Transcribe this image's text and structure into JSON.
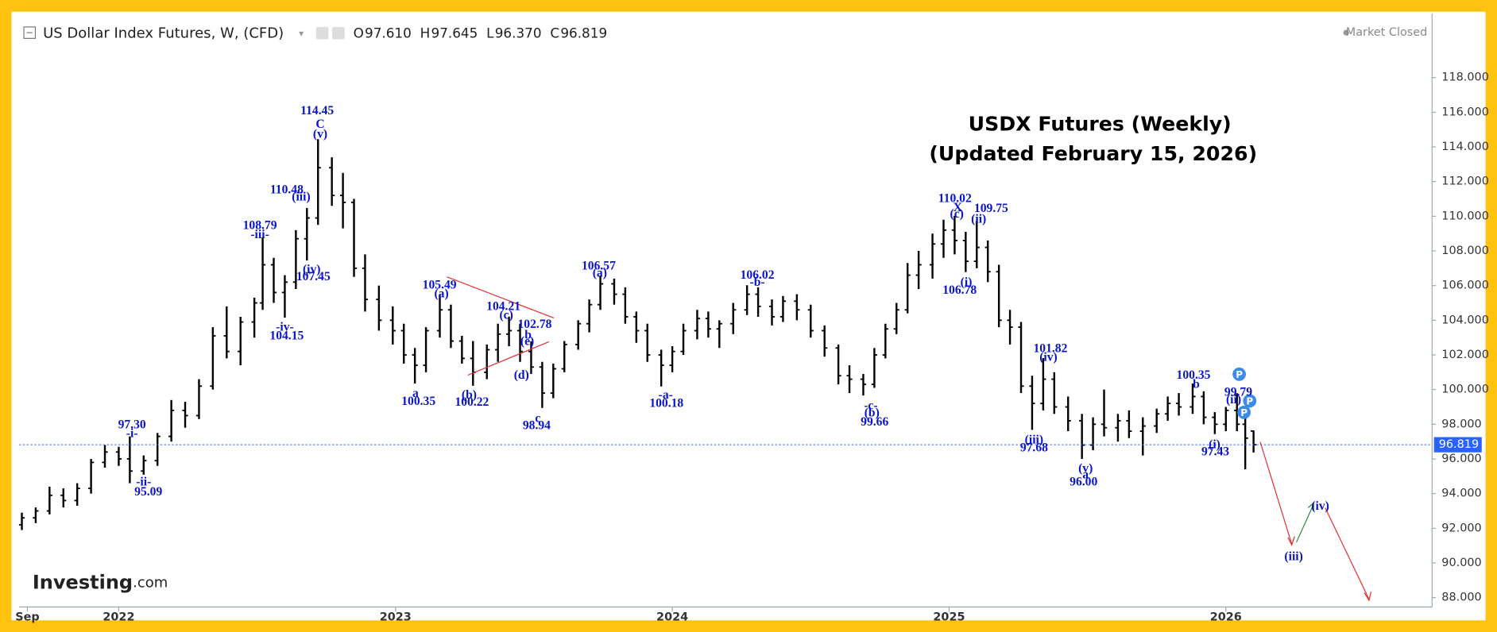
{
  "header": {
    "symbol": "US Dollar Index Futures, W, (CFD)",
    "ohlc": [
      {
        "key": "O",
        "value": "97.610"
      },
      {
        "key": "H",
        "value": "97.645"
      },
      {
        "key": "L",
        "value": "96.370"
      },
      {
        "key": "C",
        "value": "96.819"
      }
    ],
    "status": "Market Closed",
    "brand": {
      "name": "Investing",
      "suffix": ".com"
    }
  },
  "chart_data": {
    "type": "ohlc",
    "title": "USDX Futures (Weekly)",
    "subtitle": "(Updated February 15, 2026)",
    "color": "#000000",
    "x": [
      2021.65,
      2021.7,
      2021.75,
      2021.8,
      2021.85,
      2021.9,
      2021.95,
      2022.0,
      2022.04,
      2022.09,
      2022.14,
      2022.19,
      2022.24,
      2022.29,
      2022.34,
      2022.39,
      2022.44,
      2022.49,
      2022.52,
      2022.56,
      2022.6,
      2022.64,
      2022.68,
      2022.72,
      2022.77,
      2022.81,
      2022.85,
      2022.89,
      2022.94,
      2022.99,
      2023.03,
      2023.07,
      2023.11,
      2023.16,
      2023.2,
      2023.24,
      2023.28,
      2023.33,
      2023.37,
      2023.41,
      2023.45,
      2023.49,
      2023.53,
      2023.57,
      2023.61,
      2023.66,
      2023.7,
      2023.74,
      2023.79,
      2023.83,
      2023.87,
      2023.91,
      2023.96,
      2024.0,
      2024.04,
      2024.09,
      2024.13,
      2024.17,
      2024.22,
      2024.27,
      2024.31,
      2024.36,
      2024.4,
      2024.45,
      2024.5,
      2024.55,
      2024.6,
      2024.64,
      2024.69,
      2024.73,
      2024.77,
      2024.81,
      2024.85,
      2024.89,
      2024.94,
      2024.98,
      2025.02,
      2025.06,
      2025.1,
      2025.14,
      2025.18,
      2025.22,
      2025.26,
      2025.3,
      2025.34,
      2025.38,
      2025.43,
      2025.48,
      2025.52,
      2025.56,
      2025.61,
      2025.65,
      2025.7,
      2025.75,
      2025.79,
      2025.83,
      2025.88,
      2025.92,
      2025.96,
      2026.0,
      2026.04,
      2026.07,
      2026.1
    ],
    "open": [
      92.2,
      92.6,
      93.0,
      93.9,
      93.6,
      94.3,
      95.8,
      96.4,
      96.0,
      95.3,
      95.9,
      97.3,
      98.8,
      98.5,
      100.2,
      103.1,
      102.2,
      103.9,
      105.0,
      107.2,
      105.6,
      106.2,
      108.7,
      109.9,
      112.8,
      111.2,
      110.8,
      107.0,
      105.2,
      104.0,
      103.4,
      102.0,
      101.4,
      103.4,
      104.6,
      102.8,
      101.8,
      101.0,
      102.3,
      103.2,
      103.4,
      102.2,
      101.3,
      99.8,
      101.2,
      102.6,
      103.8,
      104.9,
      106.1,
      105.5,
      104.2,
      103.4,
      102.0,
      101.4,
      102.2,
      103.4,
      104.1,
      103.5,
      103.8,
      104.6,
      105.5,
      104.8,
      104.2,
      105.1,
      104.6,
      103.4,
      102.4,
      100.8,
      100.6,
      100.3,
      102.0,
      103.5,
      104.6,
      106.6,
      107.2,
      108.4,
      109.2,
      108.6,
      107.4,
      108.2,
      106.8,
      104.0,
      103.6,
      100.2,
      99.2,
      100.6,
      99.0,
      98.2,
      96.8,
      98.0,
      97.8,
      98.2,
      97.6,
      97.9,
      98.6,
      99.2,
      99.0,
      99.6,
      98.4,
      98.0,
      98.8,
      98.0,
      97.61
    ],
    "high": [
      92.9,
      93.2,
      94.4,
      94.3,
      94.6,
      96.0,
      96.8,
      96.7,
      97.3,
      96.2,
      97.5,
      99.4,
      99.3,
      100.6,
      103.6,
      104.8,
      104.2,
      105.3,
      108.79,
      107.6,
      106.6,
      109.2,
      110.48,
      114.45,
      113.4,
      112.5,
      111.0,
      107.8,
      106.0,
      104.8,
      103.8,
      102.4,
      103.6,
      105.49,
      104.9,
      103.1,
      102.8,
      102.6,
      103.8,
      104.21,
      103.8,
      102.78,
      101.6,
      101.5,
      102.8,
      104.0,
      105.2,
      106.57,
      106.4,
      105.9,
      104.5,
      103.8,
      102.3,
      102.5,
      103.8,
      104.6,
      104.5,
      104.0,
      105.0,
      106.02,
      105.9,
      105.2,
      105.4,
      105.5,
      104.9,
      103.7,
      102.6,
      101.4,
      100.9,
      102.4,
      103.8,
      105.0,
      107.3,
      108.0,
      109.0,
      109.8,
      110.02,
      109.1,
      109.75,
      108.6,
      107.2,
      104.6,
      103.9,
      100.8,
      101.82,
      101.0,
      99.6,
      98.6,
      98.4,
      100.0,
      98.6,
      98.8,
      98.4,
      98.9,
      99.6,
      99.8,
      100.35,
      99.9,
      98.7,
      99.0,
      99.79,
      98.4,
      97.645
    ],
    "low": [
      91.9,
      92.3,
      92.8,
      93.2,
      93.3,
      94.0,
      95.5,
      95.6,
      94.6,
      95.09,
      95.6,
      97.0,
      97.8,
      98.3,
      100.0,
      101.8,
      101.4,
      103.0,
      104.6,
      105.0,
      104.15,
      105.8,
      107.45,
      109.5,
      110.6,
      109.3,
      106.5,
      104.5,
      103.4,
      102.6,
      101.5,
      100.35,
      101.0,
      103.0,
      102.4,
      101.5,
      100.22,
      100.6,
      101.6,
      102.5,
      101.6,
      100.9,
      98.94,
      99.5,
      101.0,
      102.3,
      103.3,
      104.6,
      104.9,
      103.8,
      102.7,
      101.6,
      100.18,
      101.0,
      102.0,
      102.9,
      103.0,
      102.4,
      103.2,
      104.3,
      104.2,
      103.7,
      103.9,
      104.0,
      103.0,
      101.9,
      100.3,
      99.8,
      99.66,
      100.1,
      101.8,
      103.2,
      104.4,
      105.8,
      106.4,
      107.6,
      107.8,
      106.78,
      107.0,
      106.2,
      103.6,
      102.6,
      99.8,
      97.68,
      98.8,
      98.6,
      97.6,
      96.0,
      96.5,
      97.3,
      97.0,
      97.2,
      96.2,
      97.5,
      98.2,
      98.5,
      98.6,
      98.0,
      97.43,
      97.6,
      97.6,
      95.4,
      96.37
    ],
    "close": [
      92.6,
      93.0,
      93.9,
      93.6,
      94.3,
      95.8,
      96.4,
      96.0,
      95.3,
      95.9,
      97.3,
      98.8,
      98.5,
      100.2,
      103.1,
      102.2,
      103.9,
      105.0,
      107.2,
      105.6,
      106.2,
      108.7,
      109.9,
      112.8,
      111.2,
      110.8,
      107.0,
      105.2,
      104.0,
      103.4,
      102.0,
      101.4,
      103.4,
      104.6,
      102.8,
      101.8,
      101.0,
      102.3,
      103.2,
      103.4,
      102.2,
      101.3,
      99.8,
      101.2,
      102.6,
      103.8,
      104.9,
      106.1,
      105.5,
      104.2,
      103.4,
      102.0,
      101.4,
      102.2,
      103.4,
      104.1,
      103.5,
      103.8,
      104.6,
      105.5,
      104.8,
      104.2,
      105.1,
      104.6,
      103.4,
      102.4,
      100.8,
      100.6,
      100.3,
      102.0,
      103.5,
      104.6,
      106.6,
      107.2,
      108.4,
      109.2,
      108.6,
      107.4,
      108.2,
      106.8,
      104.0,
      103.6,
      100.2,
      99.2,
      100.6,
      99.0,
      98.2,
      96.8,
      98.0,
      97.8,
      98.2,
      97.6,
      97.9,
      98.6,
      99.2,
      99.0,
      99.6,
      98.4,
      98.0,
      98.8,
      98.0,
      97.2,
      96.819
    ],
    "last_price": 96.819,
    "last_price_color": "#2962ff",
    "ylim": [
      86.36,
      121.69
    ],
    "yticks": [
      {
        "value": 88,
        "label": "88.000"
      },
      {
        "value": 90,
        "label": "90.000"
      },
      {
        "value": 92,
        "label": "92.000"
      },
      {
        "value": 94,
        "label": "94.000"
      },
      {
        "value": 96,
        "label": "96.000"
      },
      {
        "value": 98,
        "label": "98.000"
      },
      {
        "value": 100,
        "label": "100.000"
      },
      {
        "value": 102,
        "label": "102.000"
      },
      {
        "value": 104,
        "label": "104.000"
      },
      {
        "value": 106,
        "label": "106.000"
      },
      {
        "value": 108,
        "label": "108.000"
      },
      {
        "value": 110,
        "label": "110.000"
      },
      {
        "value": 112,
        "label": "112.000"
      },
      {
        "value": 114,
        "label": "114.000"
      },
      {
        "value": 116,
        "label": "116.000"
      },
      {
        "value": 118,
        "label": "118.000"
      }
    ],
    "xlim": [
      2021.64,
      2026.745
    ],
    "xticks": [
      {
        "value": 2021.67,
        "label": "Sep"
      },
      2022,
      2023,
      2024,
      2025,
      2026
    ],
    "pivot_label": "P",
    "annotations": [
      {
        "text": "114.45",
        "x": 2022.717,
        "y": 116.04
      },
      {
        "text": "C",
        "x": 2022.728,
        "y": 115.26
      },
      {
        "text": "(v)",
        "x": 2022.728,
        "y": 114.69
      },
      {
        "text": "110.48",
        "x": 2022.607,
        "y": 111.49
      },
      {
        "text": "(iii)",
        "x": 2022.659,
        "y": 111.07
      },
      {
        "text": "108.79",
        "x": 2022.51,
        "y": 109.42
      },
      {
        "text": "-iii-",
        "x": 2022.51,
        "y": 108.9
      },
      {
        "text": "(iv)",
        "x": 2022.697,
        "y": 106.88
      },
      {
        "text": "107.45",
        "x": 2022.703,
        "y": 106.47
      },
      {
        "text": "-iv-",
        "x": 2022.6,
        "y": 103.57
      },
      {
        "text": "104.15",
        "x": 2022.607,
        "y": 103.05
      },
      {
        "text": "97.30",
        "x": 2022.048,
        "y": 97.93
      },
      {
        "text": "-i-",
        "x": 2022.048,
        "y": 97.42
      },
      {
        "text": "-ii-",
        "x": 2022.09,
        "y": 94.62
      },
      {
        "text": "95.09",
        "x": 2022.107,
        "y": 94.05
      },
      {
        "text": "105.49",
        "x": 2023.159,
        "y": 106.0
      },
      {
        "text": "(a)",
        "x": 2023.166,
        "y": 105.49
      },
      {
        "text": "a",
        "x": 2023.072,
        "y": 99.74
      },
      {
        "text": "100.35",
        "x": 2023.083,
        "y": 99.28
      },
      {
        "text": "(b)",
        "x": 2023.266,
        "y": 99.64
      },
      {
        "text": "100.22",
        "x": 2023.276,
        "y": 99.23
      },
      {
        "text": "104.21",
        "x": 2023.39,
        "y": 104.76
      },
      {
        "text": "(c)",
        "x": 2023.4,
        "y": 104.24
      },
      {
        "text": "102.78",
        "x": 2023.503,
        "y": 103.73
      },
      {
        "text": "b",
        "x": 2023.479,
        "y": 103.11
      },
      {
        "text": "(e)",
        "x": 2023.476,
        "y": 102.74
      },
      {
        "text": "(d)",
        "x": 2023.455,
        "y": 100.78
      },
      {
        "text": "c",
        "x": 2023.514,
        "y": 98.29
      },
      {
        "text": "98.94",
        "x": 2023.51,
        "y": 97.88
      },
      {
        "text": "106.57",
        "x": 2023.734,
        "y": 107.09
      },
      {
        "text": "(a)",
        "x": 2023.738,
        "y": 106.68
      },
      {
        "text": "-a-",
        "x": 2023.976,
        "y": 99.64
      },
      {
        "text": "100.18",
        "x": 2023.979,
        "y": 99.17
      },
      {
        "text": "106.02",
        "x": 2024.307,
        "y": 106.57
      },
      {
        "text": "-b-",
        "x": 2024.307,
        "y": 106.16
      },
      {
        "text": "-c-",
        "x": 2024.717,
        "y": 99.02
      },
      {
        "text": "(b)",
        "x": 2024.721,
        "y": 98.61
      },
      {
        "text": "99.66",
        "x": 2024.731,
        "y": 98.09
      },
      {
        "text": "110.02",
        "x": 2025.021,
        "y": 110.97
      },
      {
        "text": "X",
        "x": 2025.031,
        "y": 110.45
      },
      {
        "text": "(c)",
        "x": 2025.028,
        "y": 110.09
      },
      {
        "text": "109.75",
        "x": 2025.152,
        "y": 110.4
      },
      {
        "text": "(ii)",
        "x": 2025.107,
        "y": 109.78
      },
      {
        "text": "(i)",
        "x": 2025.062,
        "y": 106.16
      },
      {
        "text": "106.78",
        "x": 2025.038,
        "y": 105.69
      },
      {
        "text": "101.82",
        "x": 2025.366,
        "y": 102.33
      },
      {
        "text": "(iv)",
        "x": 2025.359,
        "y": 101.81
      },
      {
        "text": "(iii)",
        "x": 2025.307,
        "y": 97.05
      },
      {
        "text": "97.68",
        "x": 2025.307,
        "y": 96.59
      },
      {
        "text": "(v)",
        "x": 2025.493,
        "y": 95.4
      },
      {
        "text": "a",
        "x": 2025.493,
        "y": 95.04
      },
      {
        "text": "96.00",
        "x": 2025.486,
        "y": 94.62
      },
      {
        "text": "100.35",
        "x": 2025.883,
        "y": 100.78
      },
      {
        "text": "b",
        "x": 2025.893,
        "y": 100.26
      },
      {
        "text": "99.79",
        "x": 2026.045,
        "y": 99.8
      },
      {
        "text": "(ii)",
        "x": 2026.028,
        "y": 99.38
      },
      {
        "text": "(i)",
        "x": 2025.959,
        "y": 96.79
      },
      {
        "text": "97.43",
        "x": 2025.962,
        "y": 96.38
      },
      {
        "text": "(iv)",
        "x": 2026.341,
        "y": 93.23
      },
      {
        "text": "(iii)",
        "x": 2026.245,
        "y": 90.33
      }
    ]
  }
}
